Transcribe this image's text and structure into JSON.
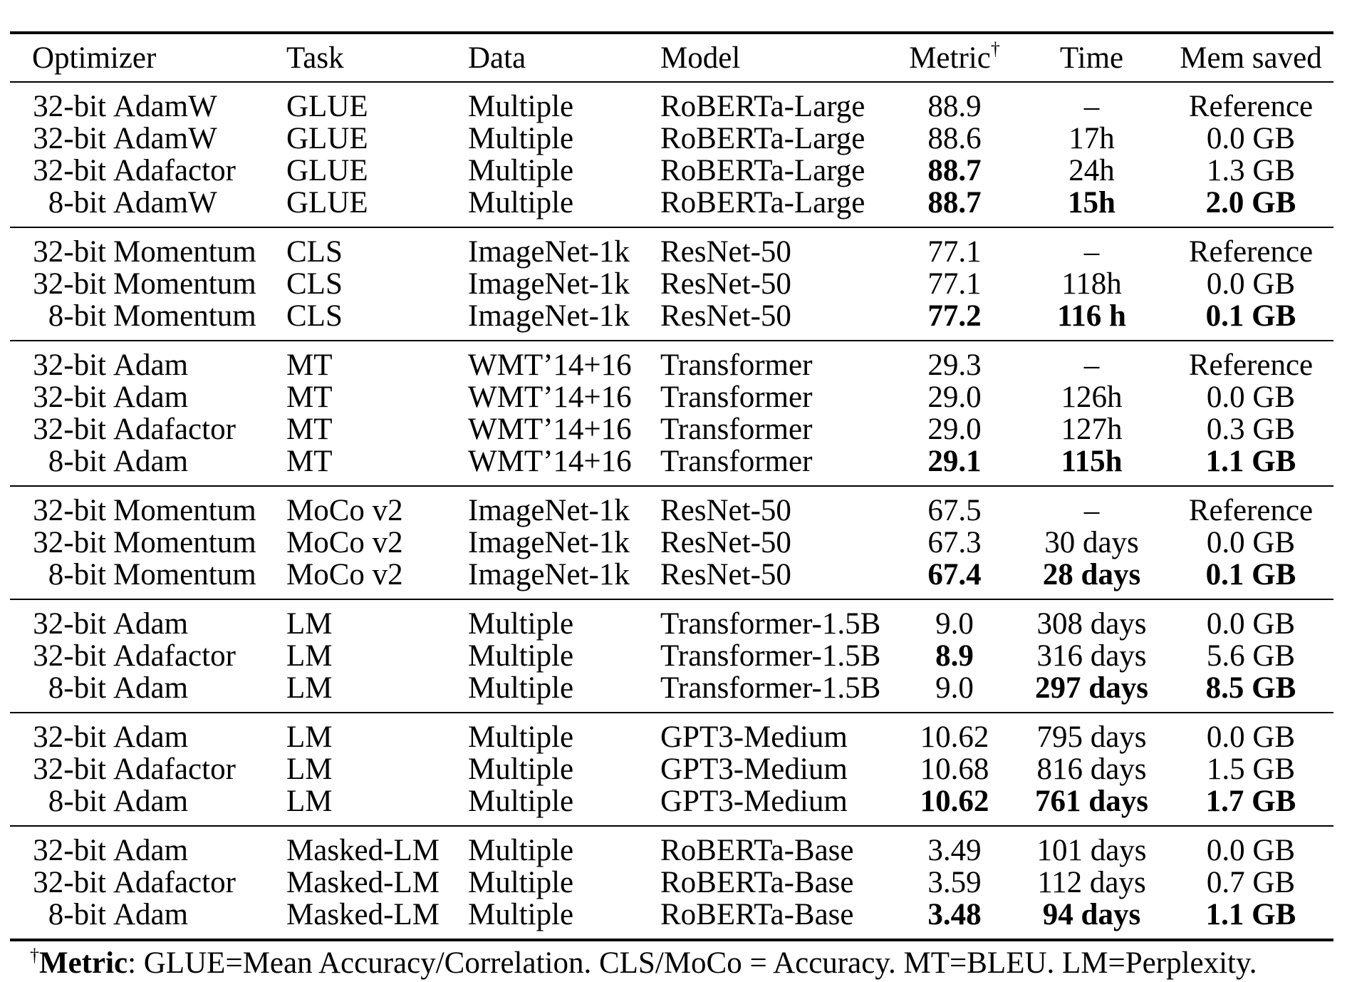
{
  "table": {
    "columns": [
      {
        "slug": "optimizer",
        "label": "Optimizer",
        "align": "left"
      },
      {
        "slug": "task",
        "label": "Task",
        "align": "left"
      },
      {
        "slug": "data",
        "label": "Data",
        "align": "left"
      },
      {
        "slug": "model",
        "label": "Model",
        "align": "left"
      },
      {
        "slug": "metric",
        "label": "Metric",
        "sup": "†",
        "align": "center"
      },
      {
        "slug": "time",
        "label": "Time",
        "align": "center"
      },
      {
        "slug": "mem-saved",
        "label": "Mem saved",
        "align": "center"
      }
    ],
    "groups": [
      {
        "rows": [
          {
            "optimizer": {
              "prefix": "32-bit",
              "name": "AdamW"
            },
            "cells": [
              "GLUE",
              "Multiple",
              "RoBERTa-Large",
              "88.9",
              "–",
              "Reference"
            ],
            "bold": []
          },
          {
            "optimizer": {
              "prefix": "32-bit",
              "name": "AdamW"
            },
            "cells": [
              "GLUE",
              "Multiple",
              "RoBERTa-Large",
              "88.6",
              "17h",
              "0.0 GB"
            ],
            "bold": []
          },
          {
            "optimizer": {
              "prefix": "32-bit",
              "name": "Adafactor"
            },
            "cells": [
              "GLUE",
              "Multiple",
              "RoBERTa-Large",
              "88.7",
              "24h",
              "1.3 GB"
            ],
            "bold": [
              3
            ]
          },
          {
            "optimizer": {
              "prefix": "8-bit",
              "name": "AdamW"
            },
            "cells": [
              "GLUE",
              "Multiple",
              "RoBERTa-Large",
              "88.7",
              "15h",
              "2.0 GB"
            ],
            "bold": [
              3,
              4,
              5
            ]
          }
        ]
      },
      {
        "rows": [
          {
            "optimizer": {
              "prefix": "32-bit",
              "name": "Momentum"
            },
            "cells": [
              "CLS",
              "ImageNet-1k",
              "ResNet-50",
              "77.1",
              "–",
              "Reference"
            ],
            "bold": []
          },
          {
            "optimizer": {
              "prefix": "32-bit",
              "name": "Momentum"
            },
            "cells": [
              "CLS",
              "ImageNet-1k",
              "ResNet-50",
              "77.1",
              "118h",
              "0.0 GB"
            ],
            "bold": []
          },
          {
            "optimizer": {
              "prefix": "8-bit",
              "name": "Momentum"
            },
            "cells": [
              "CLS",
              "ImageNet-1k",
              "ResNet-50",
              "77.2",
              "116 h",
              "0.1 GB"
            ],
            "bold": [
              3,
              4,
              5
            ]
          }
        ]
      },
      {
        "rows": [
          {
            "optimizer": {
              "prefix": "32-bit",
              "name": "Adam"
            },
            "cells": [
              "MT",
              "WMT’14+16",
              "Transformer",
              "29.3",
              "–",
              "Reference"
            ],
            "bold": []
          },
          {
            "optimizer": {
              "prefix": "32-bit",
              "name": "Adam"
            },
            "cells": [
              "MT",
              "WMT’14+16",
              "Transformer",
              "29.0",
              "126h",
              "0.0 GB"
            ],
            "bold": []
          },
          {
            "optimizer": {
              "prefix": "32-bit",
              "name": "Adafactor"
            },
            "cells": [
              "MT",
              "WMT’14+16",
              "Transformer",
              "29.0",
              "127h",
              "0.3 GB"
            ],
            "bold": []
          },
          {
            "optimizer": {
              "prefix": "8-bit",
              "name": "Adam"
            },
            "cells": [
              "MT",
              "WMT’14+16",
              "Transformer",
              "29.1",
              "115h",
              "1.1 GB"
            ],
            "bold": [
              3,
              4,
              5
            ]
          }
        ]
      },
      {
        "rows": [
          {
            "optimizer": {
              "prefix": "32-bit",
              "name": "Momentum"
            },
            "cells": [
              "MoCo v2",
              "ImageNet-1k",
              "ResNet-50",
              "67.5",
              "–",
              "Reference"
            ],
            "bold": []
          },
          {
            "optimizer": {
              "prefix": "32-bit",
              "name": "Momentum"
            },
            "cells": [
              "MoCo v2",
              "ImageNet-1k",
              "ResNet-50",
              "67.3",
              "30 days",
              "0.0 GB"
            ],
            "bold": []
          },
          {
            "optimizer": {
              "prefix": "8-bit",
              "name": "Momentum"
            },
            "cells": [
              "MoCo v2",
              "ImageNet-1k",
              "ResNet-50",
              "67.4",
              "28 days",
              "0.1 GB"
            ],
            "bold": [
              3,
              4,
              5
            ]
          }
        ]
      },
      {
        "rows": [
          {
            "optimizer": {
              "prefix": "32-bit",
              "name": "Adam"
            },
            "cells": [
              "LM",
              "Multiple",
              "Transformer-1.5B",
              "9.0",
              "308 days",
              "0.0 GB"
            ],
            "bold": []
          },
          {
            "optimizer": {
              "prefix": "32-bit",
              "name": "Adafactor"
            },
            "cells": [
              "LM",
              "Multiple",
              "Transformer-1.5B",
              "8.9",
              "316 days",
              "5.6 GB"
            ],
            "bold": [
              3
            ]
          },
          {
            "optimizer": {
              "prefix": "8-bit",
              "name": "Adam"
            },
            "cells": [
              "LM",
              "Multiple",
              "Transformer-1.5B",
              "9.0",
              "297 days",
              "8.5 GB"
            ],
            "bold": [
              4,
              5
            ]
          }
        ]
      },
      {
        "rows": [
          {
            "optimizer": {
              "prefix": "32-bit",
              "name": "Adam"
            },
            "cells": [
              "LM",
              "Multiple",
              "GPT3-Medium",
              "10.62",
              "795 days",
              "0.0 GB"
            ],
            "bold": []
          },
          {
            "optimizer": {
              "prefix": "32-bit",
              "name": "Adafactor"
            },
            "cells": [
              "LM",
              "Multiple",
              "GPT3-Medium",
              "10.68",
              "816 days",
              "1.5 GB"
            ],
            "bold": []
          },
          {
            "optimizer": {
              "prefix": "8-bit",
              "name": "Adam"
            },
            "cells": [
              "LM",
              "Multiple",
              "GPT3-Medium",
              "10.62",
              "761 days",
              "1.7 GB"
            ],
            "bold": [
              3,
              4,
              5
            ]
          }
        ]
      },
      {
        "rows": [
          {
            "optimizer": {
              "prefix": "32-bit",
              "name": "Adam"
            },
            "cells": [
              "Masked-LM",
              "Multiple",
              "RoBERTa-Base",
              "3.49",
              "101 days",
              "0.0 GB"
            ],
            "bold": []
          },
          {
            "optimizer": {
              "prefix": "32-bit",
              "name": "Adafactor"
            },
            "cells": [
              "Masked-LM",
              "Multiple",
              "RoBERTa-Base",
              "3.59",
              "112 days",
              "0.7 GB"
            ],
            "bold": []
          },
          {
            "optimizer": {
              "prefix": "8-bit",
              "name": "Adam"
            },
            "cells": [
              "Masked-LM",
              "Multiple",
              "RoBERTa-Base",
              "3.48",
              "94 days",
              "1.1 GB"
            ],
            "bold": [
              3,
              4,
              5
            ]
          }
        ]
      }
    ]
  },
  "footnote": {
    "dagger": "†",
    "label": "Metric",
    "text": ": GLUE=Mean Accuracy/Correlation. CLS/MoCo = Accuracy. MT=BLEU. LM=Perplexity."
  }
}
